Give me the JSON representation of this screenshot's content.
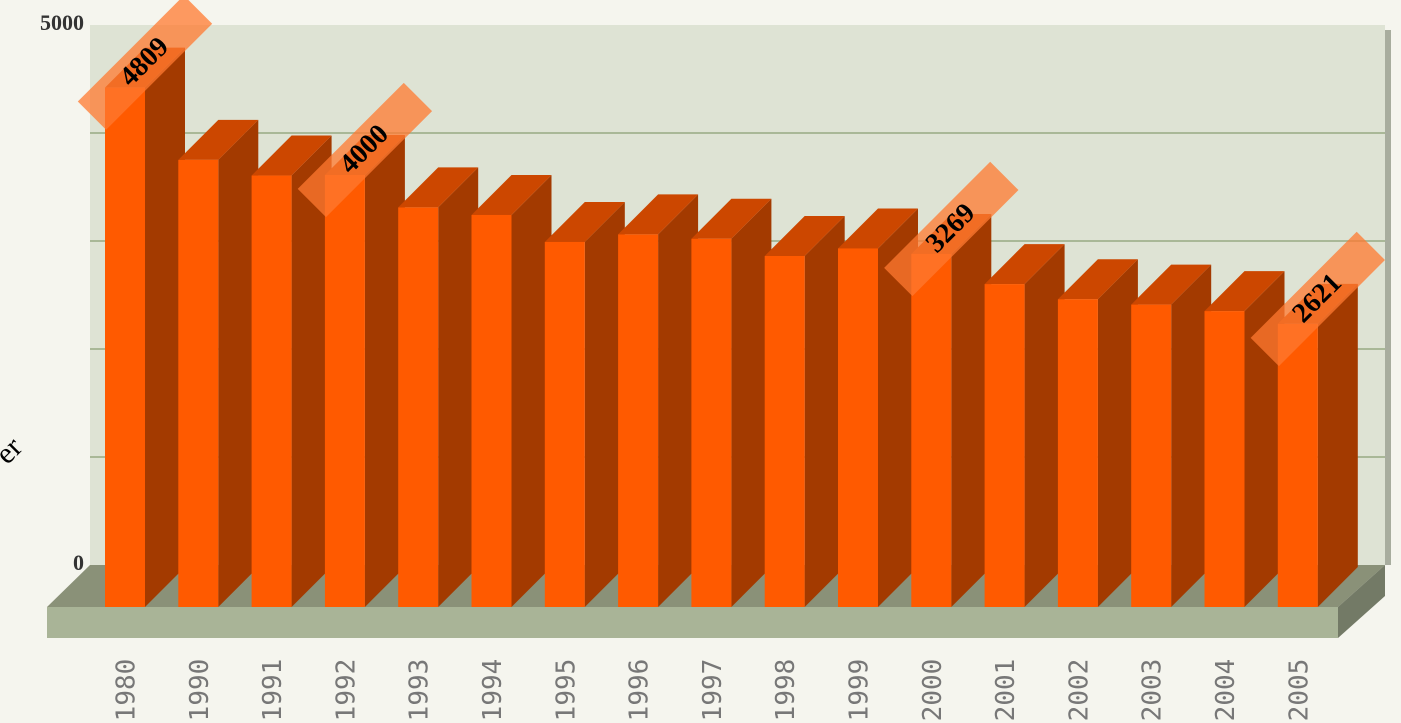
{
  "chart_data": {
    "type": "bar3d",
    "y_label": "er",
    "categories": [
      "1980",
      "1990",
      "1991",
      "1992",
      "1993",
      "1994",
      "1995",
      "1996",
      "1997",
      "1998",
      "1999",
      "2000",
      "2001",
      "2002",
      "2003",
      "2004",
      "2005"
    ],
    "values": [
      4809,
      4140,
      3995,
      4000,
      3700,
      3630,
      3380,
      3450,
      3410,
      3250,
      3320,
      3269,
      2990,
      2850,
      2800,
      2740,
      2621
    ],
    "value_labels": [
      "4809",
      null,
      null,
      "4000",
      null,
      null,
      null,
      null,
      null,
      null,
      null,
      "3269",
      null,
      null,
      null,
      null,
      "2621"
    ],
    "color": "#ff5a00",
    "ylim": [
      0,
      5000
    ],
    "yticks": [
      0,
      5000
    ],
    "grid_lines": [
      1000,
      2000,
      3000,
      4000
    ],
    "grid": true
  }
}
